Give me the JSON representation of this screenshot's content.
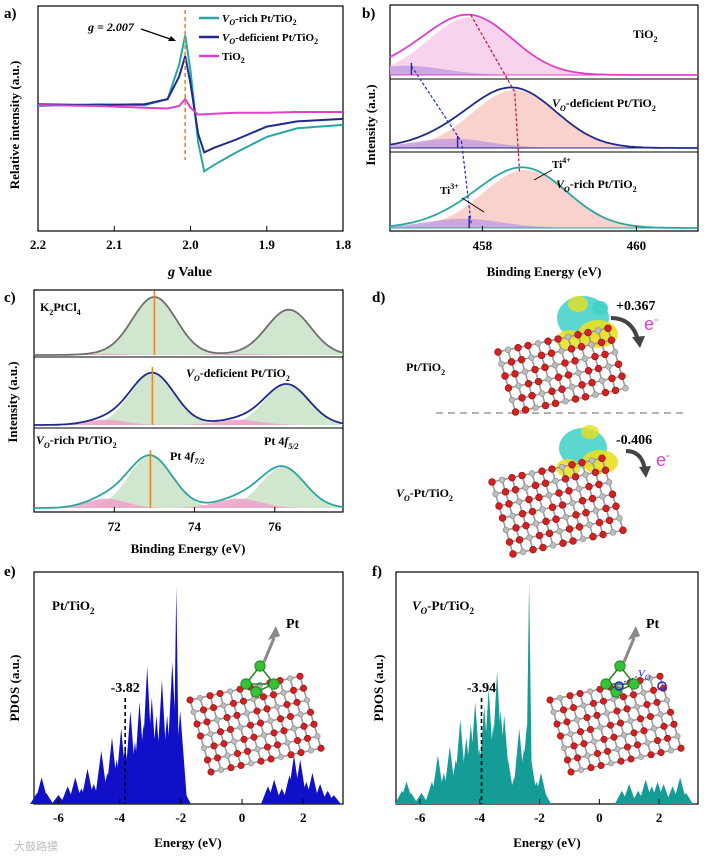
{
  "figure": {
    "watermark": "大鼓路摸",
    "colors": {
      "teal": "#2aa6a0",
      "navy": "#1f2a8a",
      "magenta": "#e040c8",
      "orange": "#e8862a",
      "pinkfill": "#f4a0a0",
      "purplefill": "#c39be0",
      "greenfill": "#c9e2c6",
      "gray": "#8a8a8a",
      "pdos_blue": "#1010c8",
      "pdos_teal": "#159c96"
    }
  },
  "chart_data": [
    {
      "panel": "a)",
      "type": "line",
      "title": "",
      "xlabel": "g Value",
      "ylabel": "Relative intensity (a.u.)",
      "xlim": [
        2.2,
        1.8
      ],
      "xticks": [
        "2.2",
        "2.1",
        "2.0",
        "1.9",
        "1.8"
      ],
      "annotation": "g = 2.007",
      "marker_g": 2.007,
      "series": [
        {
          "name": "VO-rich Pt/TiO2",
          "legend_main": "V",
          "legend_sub": "O",
          "legend_rest": "-rich Pt/TiO",
          "legend_sub2": "2",
          "color": "teal",
          "points": [
            [
              2.2,
              0.14
            ],
            [
              2.12,
              0.16
            ],
            [
              2.06,
              0.15
            ],
            [
              2.03,
              0.22
            ],
            [
              2.015,
              0.62
            ],
            [
              2.007,
              0.96
            ],
            [
              2.0,
              0.55
            ],
            [
              1.99,
              -0.28
            ],
            [
              1.982,
              -0.62
            ],
            [
              1.97,
              -0.55
            ],
            [
              1.94,
              -0.4
            ],
            [
              1.9,
              -0.22
            ],
            [
              1.86,
              -0.12
            ],
            [
              1.8,
              -0.08
            ]
          ]
        },
        {
          "name": "VO-deficient Pt/TiO2",
          "legend_main": "V",
          "legend_sub": "O",
          "legend_rest": "-deficient Pt/TiO",
          "legend_sub2": "2",
          "color": "navy",
          "points": [
            [
              2.2,
              0.16
            ],
            [
              2.12,
              0.15
            ],
            [
              2.06,
              0.16
            ],
            [
              2.03,
              0.22
            ],
            [
              2.015,
              0.48
            ],
            [
              2.007,
              0.72
            ],
            [
              2.0,
              0.4
            ],
            [
              1.99,
              -0.18
            ],
            [
              1.982,
              -0.4
            ],
            [
              1.97,
              -0.35
            ],
            [
              1.94,
              -0.25
            ],
            [
              1.9,
              -0.1
            ],
            [
              1.86,
              -0.04
            ],
            [
              1.8,
              -0.01
            ]
          ]
        },
        {
          "name": "TiO2",
          "legend_main": "TiO",
          "legend_sub": "",
          "legend_rest": "",
          "legend_sub2": "2",
          "color": "magenta",
          "points": [
            [
              2.2,
              0.15
            ],
            [
              2.12,
              0.14
            ],
            [
              2.06,
              0.12
            ],
            [
              2.03,
              0.11
            ],
            [
              2.015,
              0.14
            ],
            [
              2.007,
              0.22
            ],
            [
              2.0,
              0.12
            ],
            [
              1.99,
              0.04
            ],
            [
              1.97,
              0.05
            ],
            [
              1.94,
              0.06
            ],
            [
              1.9,
              0.06
            ],
            [
              1.86,
              0.07
            ],
            [
              1.8,
              0.07
            ]
          ]
        }
      ]
    },
    {
      "panel": "b)",
      "type": "area",
      "xlabel": "Binding Energy (eV)",
      "ylabel": "Intensity (a.u.)",
      "xlim": [
        456.8,
        460.8
      ],
      "xticks": [
        "458",
        "460"
      ],
      "xtick_values": [
        458,
        460
      ],
      "peaks_ti4": [
        457.85,
        458.42,
        458.56
      ],
      "peaks_ti3": [
        457.0,
        457.6,
        457.75
      ],
      "labels": [
        {
          "main": "TiO",
          "sub": "2",
          "pre": "",
          "presub": ""
        },
        {
          "main": "-deficient Pt/TiO",
          "sub": "2",
          "pre": "V",
          "presub": "O"
        },
        {
          "main": "-rich Pt/TiO",
          "sub": "2",
          "pre": "V",
          "presub": "O"
        }
      ],
      "ti3_label": "Ti",
      "ti3_sup": "3+",
      "ti4_label": "Ti",
      "ti4_sup": "4+"
    },
    {
      "panel": "c)",
      "type": "area",
      "xlabel": "Binding Energy (eV)",
      "ylabel": "Intensity (a.u.)",
      "xlim": [
        70.0,
        77.7
      ],
      "xticks": [
        "72",
        "74",
        "76"
      ],
      "xtick_values": [
        72,
        74,
        76
      ],
      "peaks_72": [
        73.0,
        72.95,
        72.9
      ],
      "peaks_76": [
        76.35,
        76.3,
        76.2
      ],
      "labels": [
        {
          "pre": "K",
          "presub": "2",
          "main": "PtCl",
          "sub": "4"
        },
        {
          "pre": "V",
          "presub": "O",
          "main": "-deficient Pt/TiO",
          "sub": "2"
        },
        {
          "pre": "V",
          "presub": "O",
          "main": "-rich Pt/TiO",
          "sub": "2"
        }
      ],
      "pt_label_a": "Pt 4",
      "pt_label_a_f": "f",
      "pt_label_a_sub": "7/2",
      "pt_label_b": "Pt 4",
      "pt_label_b_f": "f",
      "pt_label_b_sub": "5/2"
    },
    {
      "panel": "e)",
      "type": "bar",
      "xlabel": "Energy (eV)",
      "ylabel": "PDOS (a.u.)",
      "xlim": [
        -6.8,
        3.3
      ],
      "xticks": [
        "-6",
        "-4",
        "-2",
        "0",
        "2"
      ],
      "xtick_values": [
        -6,
        -4,
        -2,
        0,
        2
      ],
      "label": "Pt/TiO",
      "label_sub": "2",
      "dband": "-3.82",
      "dband_value": -3.82,
      "color": "pdos_blue",
      "spikes": [
        [
          -6.7,
          0.05
        ],
        [
          -6.55,
          0.12
        ],
        [
          -6.4,
          0.05
        ],
        [
          -6.0,
          0.04
        ],
        [
          -5.7,
          0.08
        ],
        [
          -5.45,
          0.12
        ],
        [
          -5.25,
          0.07
        ],
        [
          -5.05,
          0.16
        ],
        [
          -4.85,
          0.09
        ],
        [
          -4.6,
          0.24
        ],
        [
          -4.4,
          0.14
        ],
        [
          -4.25,
          0.3
        ],
        [
          -4.1,
          0.2
        ],
        [
          -3.95,
          0.34
        ],
        [
          -3.82,
          0.26
        ],
        [
          -3.65,
          0.42
        ],
        [
          -3.5,
          0.28
        ],
        [
          -3.35,
          0.46
        ],
        [
          -3.22,
          0.36
        ],
        [
          -3.1,
          0.62
        ],
        [
          -2.95,
          0.48
        ],
        [
          -2.8,
          0.4
        ],
        [
          -2.62,
          0.56
        ],
        [
          -2.45,
          0.4
        ],
        [
          -2.28,
          0.64
        ],
        [
          -2.15,
          0.98
        ],
        [
          -2.02,
          0.42
        ],
        [
          -1.9,
          0.06
        ],
        [
          0.85,
          0.08
        ],
        [
          1.05,
          0.11
        ],
        [
          1.3,
          0.07
        ],
        [
          1.55,
          0.13
        ],
        [
          1.7,
          0.22
        ],
        [
          1.9,
          0.2
        ],
        [
          2.1,
          0.1
        ],
        [
          2.3,
          0.14
        ],
        [
          2.55,
          0.09
        ],
        [
          2.8,
          0.06
        ],
        [
          3.0,
          0.04
        ]
      ]
    },
    {
      "panel": "f)",
      "type": "bar",
      "xlabel": "Energy (eV)",
      "ylabel": "PDOS (a.u.)",
      "xlim": [
        -6.8,
        3.3
      ],
      "xticks": [
        "-6",
        "-4",
        "-2",
        "0",
        "2"
      ],
      "xtick_values": [
        -6,
        -4,
        -2,
        0,
        2
      ],
      "label_pre": "V",
      "label_presub": "O",
      "label": "-Pt/TiO",
      "label_sub": "2",
      "dband": "-3.94",
      "dband_value": -3.94,
      "vo_label": "V",
      "vo_sub": "O",
      "color": "pdos_teal",
      "spikes": [
        [
          -6.6,
          0.06
        ],
        [
          -6.45,
          0.1
        ],
        [
          -6.3,
          0.05
        ],
        [
          -5.95,
          0.05
        ],
        [
          -5.6,
          0.1
        ],
        [
          -5.4,
          0.22
        ],
        [
          -5.2,
          0.14
        ],
        [
          -5.0,
          0.26
        ],
        [
          -4.8,
          0.2
        ],
        [
          -4.65,
          0.38
        ],
        [
          -4.45,
          0.3
        ],
        [
          -4.3,
          0.36
        ],
        [
          -4.15,
          0.46
        ],
        [
          -4.0,
          0.25
        ],
        [
          -3.85,
          0.44
        ],
        [
          -3.7,
          0.52
        ],
        [
          -3.55,
          0.36
        ],
        [
          -3.42,
          0.6
        ],
        [
          -3.3,
          0.42
        ],
        [
          -3.18,
          0.4
        ],
        [
          -3.05,
          0.2
        ],
        [
          -2.85,
          0.12
        ],
        [
          -2.68,
          0.34
        ],
        [
          -2.52,
          0.25
        ],
        [
          -2.42,
          0.36
        ],
        [
          -2.35,
          1.0
        ],
        [
          -2.28,
          0.2
        ],
        [
          -2.1,
          0.1
        ],
        [
          -1.95,
          0.14
        ],
        [
          -1.85,
          0.06
        ],
        [
          0.75,
          0.06
        ],
        [
          1.0,
          0.09
        ],
        [
          1.3,
          0.06
        ],
        [
          1.55,
          0.11
        ],
        [
          1.75,
          0.08
        ],
        [
          1.95,
          0.1
        ],
        [
          2.15,
          0.09
        ],
        [
          2.45,
          0.08
        ],
        [
          2.7,
          0.12
        ],
        [
          2.9,
          0.05
        ]
      ]
    }
  ],
  "panel_d": {
    "panel": "d)",
    "top_label_main": "Pt/TiO",
    "top_label_sub": "2",
    "top_charge": "+0.367",
    "bottom_label_pre": "V",
    "bottom_label_presub": "O",
    "bottom_label_main": "-Pt/TiO",
    "bottom_label_sub": "2",
    "bottom_charge": "-0.406",
    "electron": "e",
    "electron_sup": "-"
  },
  "panel_e_inset": {
    "atom": "Pt"
  },
  "panel_f_inset": {
    "atom": "Pt"
  }
}
